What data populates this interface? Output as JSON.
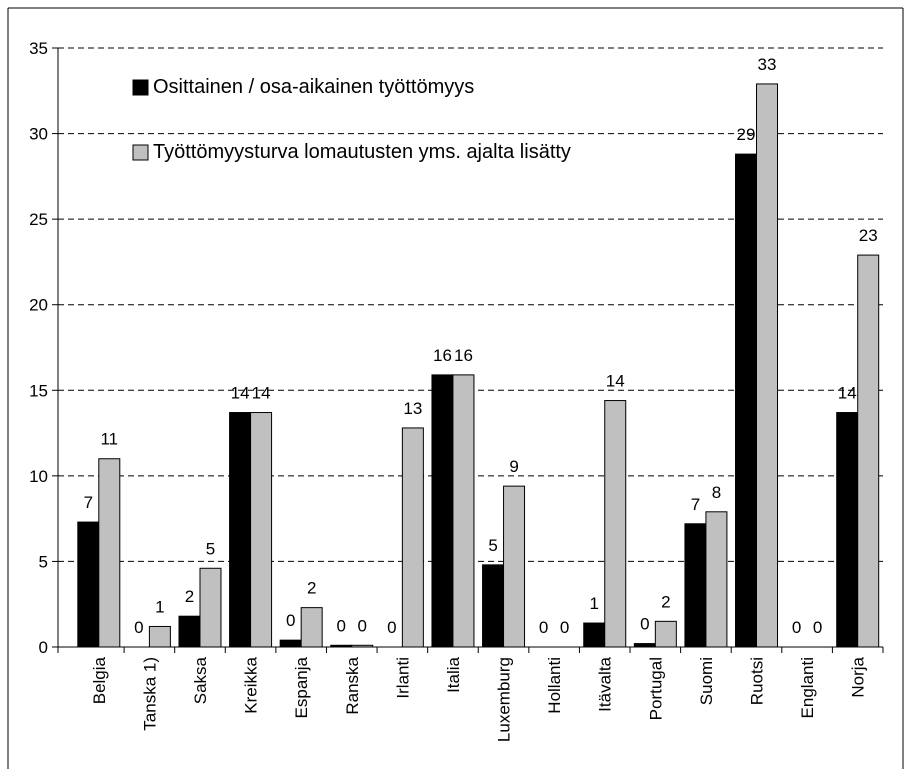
{
  "chart_data": {
    "type": "bar",
    "categories": [
      "Belgia",
      "Tanska 1)",
      "Saksa",
      "Kreikka",
      "Espanja",
      "Ranska",
      "Irlanti",
      "Italia",
      "Luxemburg",
      "Hollanti",
      "Itävalta",
      "Portugal",
      "Suomi",
      "Ruotsi",
      "Englanti",
      "Norja"
    ],
    "series": [
      {
        "name": "Osittainen / osa-aikainen työttömyys",
        "color": "#000000",
        "values": [
          7.3,
          0,
          1.8,
          13.7,
          0.4,
          0.1,
          0,
          15.9,
          4.8,
          0,
          1.4,
          0.2,
          7.2,
          28.8,
          0,
          13.7
        ],
        "value_labels": [
          "7",
          "0",
          "2",
          "14",
          "0",
          "0",
          "0",
          "16",
          "5",
          "0",
          "1",
          "0",
          "7",
          "29",
          "0",
          "14"
        ]
      },
      {
        "name": "Työttömyysturva lomautusten yms. ajalta lisätty",
        "color": "#c0c0c0",
        "values": [
          11,
          1.2,
          4.6,
          13.7,
          2.3,
          0.1,
          12.8,
          15.9,
          9.4,
          0,
          14.4,
          1.5,
          7.9,
          32.9,
          0,
          22.9
        ],
        "value_labels": [
          "11",
          "1",
          "5",
          "14",
          "2",
          "0",
          "13",
          "16",
          "9",
          "0",
          "14",
          "2",
          "8",
          "33",
          "0",
          "23"
        ]
      }
    ],
    "ylim": [
      0,
      35
    ],
    "yticks": [
      0,
      5,
      10,
      15,
      20,
      25,
      30,
      35
    ],
    "grid": true
  }
}
